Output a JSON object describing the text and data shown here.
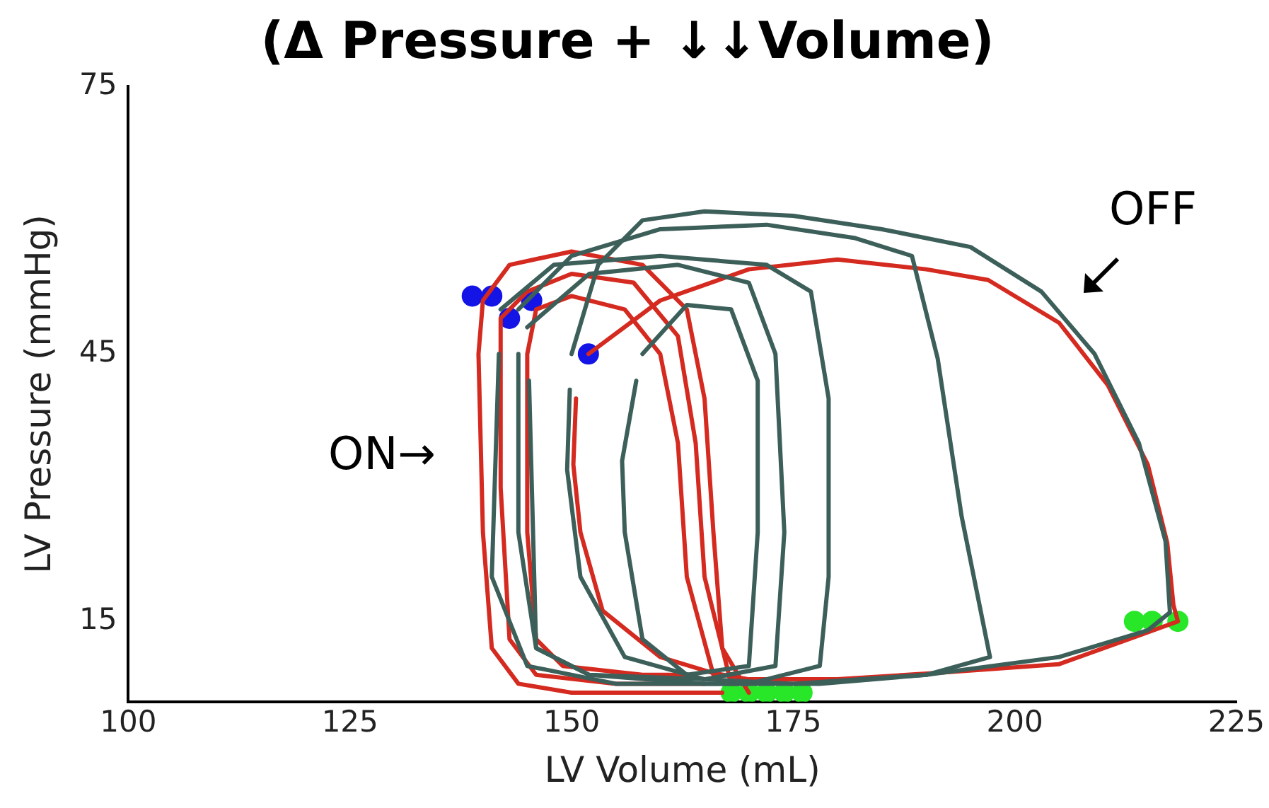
{
  "chart_data": {
    "type": "line",
    "title": "(Δ Pressure + ↓↓Volume)",
    "xlabel": "LV Volume (mL)",
    "ylabel": "LV Pressure (mmHg)",
    "xlim": [
      100,
      225
    ],
    "xticks": [
      100,
      125,
      150,
      175,
      200,
      225
    ],
    "ylim": [
      6,
      75
    ],
    "yticks": [
      15,
      45,
      75
    ],
    "grid": false,
    "legend": false,
    "line_style": "solid",
    "annotations": [
      "ON→",
      "OFF"
    ],
    "series": [
      {
        "type": "line",
        "marker": "none",
        "color": "#3d5f5a",
        "x": [
          150,
          153,
          158,
          165,
          175,
          185,
          195,
          203,
          209,
          214,
          217,
          217.5,
          215,
          205,
          190,
          175,
          165,
          156,
          151,
          149.5,
          149.8
        ],
        "values": [
          45,
          55,
          60,
          61,
          60.5,
          59,
          57,
          52,
          45,
          35,
          24,
          16,
          14,
          11,
          9,
          8,
          8.5,
          11,
          20,
          32,
          41
        ]
      },
      {
        "type": "line",
        "marker": "none",
        "color": "#3d5f5a",
        "x": [
          144,
          150,
          160,
          172,
          182,
          188.4,
          191.3,
          194,
          197.2,
          190,
          178,
          165,
          152,
          146,
          144,
          144
        ],
        "values": [
          50,
          56,
          59,
          59.5,
          58,
          56,
          44.5,
          26.8,
          11,
          9,
          8,
          8,
          9,
          12,
          25,
          45
        ]
      },
      {
        "type": "line",
        "marker": "none",
        "color": "#3d5f5a",
        "x": [
          142,
          148,
          160,
          172,
          177,
          179,
          179,
          178,
          170,
          155,
          145,
          141,
          141.8
        ],
        "values": [
          50,
          55,
          56,
          55,
          52,
          40,
          20,
          10,
          8,
          8,
          10,
          20,
          45
        ]
      },
      {
        "type": "line",
        "marker": "none",
        "color": "#3d5f5a",
        "x": [
          145,
          152,
          162,
          170,
          173,
          174,
          173,
          165,
          152,
          146,
          145.2
        ],
        "values": [
          48,
          54,
          55,
          53,
          45,
          25,
          10,
          8.5,
          9,
          12,
          42
        ]
      },
      {
        "type": "line",
        "marker": "none",
        "color": "#3d5f5a",
        "x": [
          158,
          163,
          168,
          171,
          171,
          170,
          163,
          158,
          156,
          155.7,
          157.3
        ],
        "values": [
          45,
          50.5,
          50,
          42,
          25,
          10,
          9,
          13,
          25,
          33,
          42
        ]
      },
      {
        "type": "line",
        "marker": "none",
        "color": "#d42a20",
        "x": [
          170,
          167,
          166,
          165,
          163,
          158,
          150,
          143,
          140,
          139.5,
          140,
          141,
          144,
          150,
          160,
          167
        ],
        "values": [
          7,
          12,
          25,
          40,
          50,
          55,
          56.5,
          55,
          51,
          45,
          25,
          12,
          8,
          7,
          7,
          7
        ]
      },
      {
        "type": "line",
        "marker": "none",
        "color": "#d42a20",
        "x": [
          168,
          165,
          164,
          162,
          157,
          150,
          145,
          142,
          142,
          143,
          146,
          155,
          165
        ],
        "values": [
          8,
          20,
          35,
          47,
          53,
          54,
          52,
          49,
          30,
          13,
          9,
          8,
          8
        ]
      },
      {
        "type": "line",
        "marker": "none",
        "color": "#d42a20",
        "x": [
          166,
          163,
          162,
          160,
          156,
          150,
          146,
          145,
          145,
          146,
          149,
          158,
          164
        ],
        "values": [
          9,
          20,
          35,
          45,
          50,
          51.5,
          50,
          45,
          25,
          13,
          10,
          9,
          9
        ]
      },
      {
        "type": "line",
        "marker": "none",
        "color": "#d42a20",
        "x": [
          151.9,
          160,
          170,
          180,
          190,
          197,
          205,
          210.5,
          215,
          217.2,
          217.9,
          218.4,
          213.4,
          205,
          191,
          180,
          170,
          166,
          160,
          153.5,
          151,
          150.2,
          150.5
        ],
        "values": [
          45,
          51,
          54.5,
          55.6,
          54.5,
          53.3,
          48.5,
          41.5,
          32.6,
          23.8,
          16.8,
          15,
          13.2,
          10.2,
          9.2,
          8.5,
          8.5,
          9.2,
          11,
          16.2,
          25,
          32.6,
          40
        ]
      },
      {
        "type": "scatter",
        "marker": "circle",
        "color": "#1414e6",
        "x": [
          138.8,
          141,
          143,
          145.5,
          151.9
        ],
        "values": [
          51.5,
          51.5,
          49,
          51,
          45
        ]
      },
      {
        "type": "scatter",
        "marker": "circle",
        "color": "#28e628",
        "x": [
          168,
          170,
          172,
          174,
          176,
          213.5,
          215.5,
          218.4
        ],
        "values": [
          7,
          7,
          7,
          7,
          7,
          15,
          15,
          15
        ]
      }
    ]
  }
}
